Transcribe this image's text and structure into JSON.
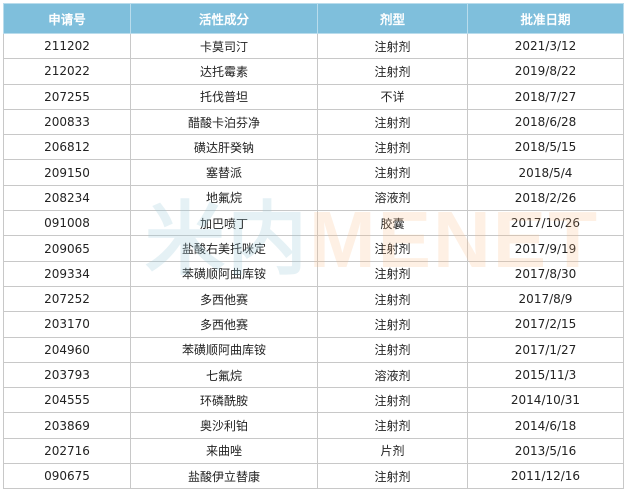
{
  "watermark": {
    "cn": "米内",
    "en": "MENET"
  },
  "table": {
    "headers": [
      "申请号",
      "活性成分",
      "剂型",
      "批准日期"
    ],
    "rows": [
      [
        "211202",
        "卡莫司汀",
        "注射剂",
        "2021/3/12"
      ],
      [
        "212022",
        "达托霉素",
        "注射剂",
        "2019/8/22"
      ],
      [
        "207255",
        "托伐普坦",
        "不详",
        "2018/7/27"
      ],
      [
        "200833",
        "醋酸卡泊芬净",
        "注射剂",
        "2018/6/28"
      ],
      [
        "206812",
        "磺达肝癸钠",
        "注射剂",
        "2018/5/15"
      ],
      [
        "209150",
        "塞替派",
        "注射剂",
        "2018/5/4"
      ],
      [
        "208234",
        "地氟烷",
        "溶液剂",
        "2018/2/26"
      ],
      [
        "091008",
        "加巴喷丁",
        "胶囊",
        "2017/10/26"
      ],
      [
        "209065",
        "盐酸右美托咪定",
        "注射剂",
        "2017/9/19"
      ],
      [
        "209334",
        "苯磺顺阿曲库铵",
        "注射剂",
        "2017/8/30"
      ],
      [
        "207252",
        "多西他赛",
        "注射剂",
        "2017/8/9"
      ],
      [
        "203170",
        "多西他赛",
        "注射剂",
        "2017/2/15"
      ],
      [
        "204960",
        "苯磺顺阿曲库铵",
        "注射剂",
        "2017/1/27"
      ],
      [
        "203793",
        "七氟烷",
        "溶液剂",
        "2015/11/3"
      ],
      [
        "204555",
        "环磷酰胺",
        "注射剂",
        "2014/10/31"
      ],
      [
        "203869",
        "奥沙利铂",
        "注射剂",
        "2014/6/18"
      ],
      [
        "202716",
        "来曲唑",
        "片剂",
        "2013/5/16"
      ],
      [
        "090675",
        "盐酸伊立替康",
        "注射剂",
        "2011/12/16"
      ]
    ]
  }
}
